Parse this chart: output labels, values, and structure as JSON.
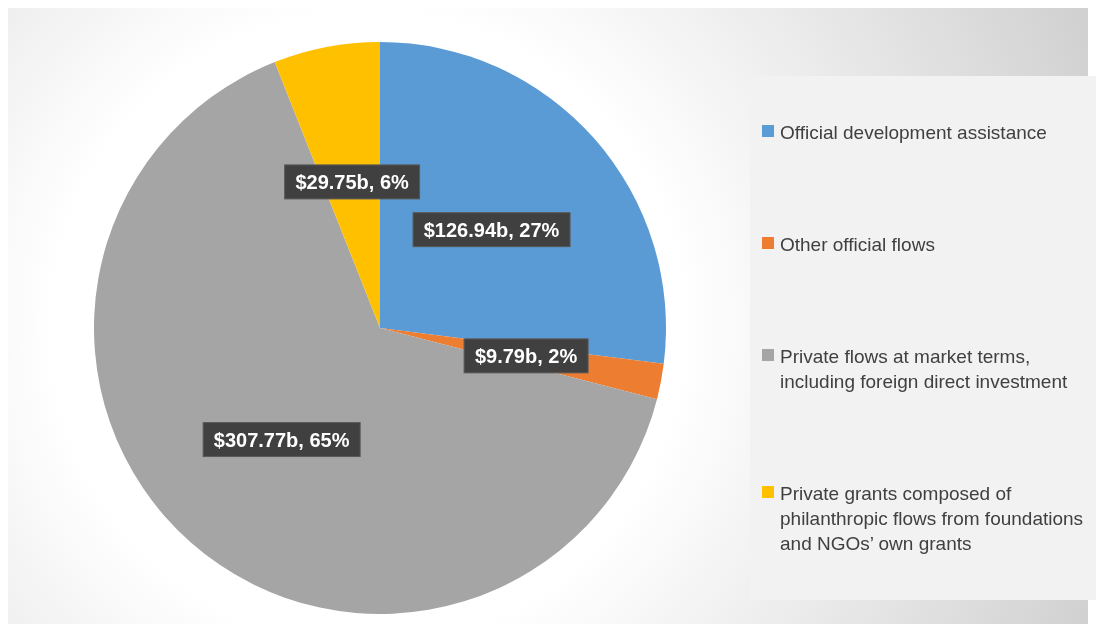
{
  "chart_data": {
    "type": "pie",
    "categories": [
      "Official development assistance",
      "Other official flows",
      "Private flows at market terms, including foreign direct investment",
      "Private grants composed of philanthropic flows from foundations and NGOs’ own grants"
    ],
    "values": [
      27,
      2,
      65,
      6
    ],
    "colors": [
      "#5b9bd5",
      "#ed7d31",
      "#a5a5a5",
      "#ffc000"
    ],
    "value_labels": [
      "$126.94b, 27%",
      "$9.79b, 2%",
      "$307.77b, 65%",
      "$29.75b, 6%"
    ],
    "legend": "right"
  }
}
